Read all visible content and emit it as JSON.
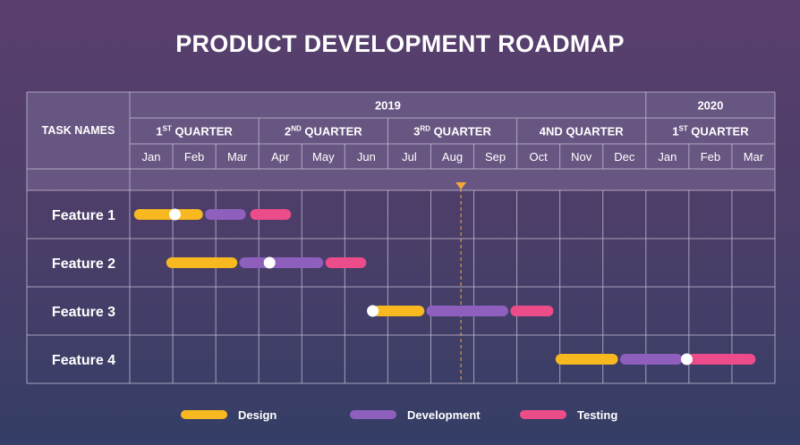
{
  "title": "PRODUCT DEVELOPMENT ROADMAP",
  "header": {
    "task_names_label": "TASK NAMES",
    "years": [
      {
        "label": "2019",
        "months": 12
      },
      {
        "label": "2020",
        "months": 3
      }
    ],
    "quarters": [
      {
        "prefix": "1",
        "sup": "ST",
        "suffix": " QUARTER",
        "months": 3
      },
      {
        "prefix": "2",
        "sup": "ND",
        "suffix": " QUARTER",
        "months": 3
      },
      {
        "prefix": "3",
        "sup": "RD",
        "suffix": " QUARTER",
        "months": 3
      },
      {
        "prefix": "4ND QUARTER",
        "sup": "",
        "suffix": "",
        "months": 3
      },
      {
        "prefix": "1",
        "sup": "ST",
        "suffix": " QUARTER",
        "months": 3
      }
    ],
    "months": [
      "Jan",
      "Feb",
      "Mar",
      "Apr",
      "May",
      "Jun",
      "Jul",
      "Aug",
      "Sep",
      "Oct",
      "Nov",
      "Dec",
      "Jan",
      "Feb",
      "Mar"
    ]
  },
  "today_marker_month": 7.7,
  "tasks": [
    {
      "name": "Feature 1",
      "phases": [
        {
          "phase": "design",
          "start": 0.1,
          "end": 1.7
        },
        {
          "phase": "development",
          "start": 1.75,
          "end": 2.7
        },
        {
          "phase": "testing",
          "start": 2.8,
          "end": 3.75
        }
      ],
      "milestone": 1.05
    },
    {
      "name": "Feature 2",
      "phases": [
        {
          "phase": "design",
          "start": 0.85,
          "end": 2.5
        },
        {
          "phase": "development",
          "start": 2.55,
          "end": 4.5
        },
        {
          "phase": "testing",
          "start": 4.55,
          "end": 5.5
        }
      ],
      "milestone": 3.25
    },
    {
      "name": "Feature 3",
      "phases": [
        {
          "phase": "design",
          "start": 5.65,
          "end": 6.85
        },
        {
          "phase": "development",
          "start": 6.9,
          "end": 8.8
        },
        {
          "phase": "testing",
          "start": 8.85,
          "end": 9.85
        }
      ],
      "milestone": 5.65
    },
    {
      "name": "Feature 4",
      "phases": [
        {
          "phase": "design",
          "start": 9.9,
          "end": 11.35
        },
        {
          "phase": "development",
          "start": 11.4,
          "end": 12.85
        },
        {
          "phase": "testing",
          "start": 12.95,
          "end": 14.55
        }
      ],
      "milestone": 12.95
    }
  ],
  "legend": [
    {
      "phase": "design",
      "label": "Design"
    },
    {
      "phase": "development",
      "label": "Development"
    },
    {
      "phase": "testing",
      "label": "Testing"
    }
  ],
  "colors": {
    "design": "#f8b81f",
    "development": "#8f5fbe",
    "testing": "#ec4c8a",
    "milestone": "#ffffff",
    "today": "#f4a83a",
    "header_bg": "#6c5b86",
    "grid": "#c9c1d8"
  }
}
